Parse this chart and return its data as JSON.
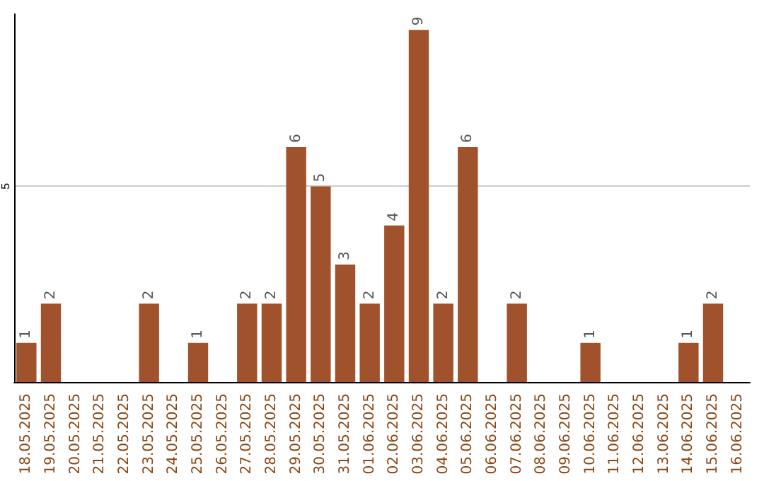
{
  "chart_data": {
    "type": "bar",
    "categories": [
      "18.05.2025",
      "19.05.2025",
      "20.05.2025",
      "21.05.2025",
      "22.05.2025",
      "23.05.2025",
      "24.05.2025",
      "25.05.2025",
      "26.05.2025",
      "27.05.2025",
      "28.05.2025",
      "29.05.2025",
      "30.05.2025",
      "31.05.2025",
      "01.06.2025",
      "02.06.2025",
      "03.06.2025",
      "04.06.2025",
      "05.06.2025",
      "06.06.2025",
      "07.06.2025",
      "08.06.2025",
      "09.06.2025",
      "10.06.2025",
      "11.06.2025",
      "12.06.2025",
      "13.06.2025",
      "14.06.2025",
      "15.06.2025",
      "16.06.2025"
    ],
    "values": [
      1,
      2,
      0,
      0,
      0,
      2,
      0,
      1,
      0,
      2,
      2,
      6,
      5,
      3,
      2,
      4,
      9,
      2,
      6,
      0,
      2,
      0,
      0,
      1,
      0,
      0,
      0,
      1,
      2,
      0
    ],
    "value_labels": [
      "1",
      "2",
      null,
      null,
      null,
      "2",
      null,
      "1",
      null,
      "2",
      "2",
      "6",
      "5",
      "3",
      "2",
      "4",
      "9",
      "2",
      "6",
      null,
      "2",
      null,
      null,
      "1",
      null,
      null,
      null,
      "1",
      "2",
      null
    ],
    "color": "#a0522d",
    "ylim": [
      0,
      9.4
    ],
    "yticks": [
      5
    ],
    "grid": "y"
  }
}
